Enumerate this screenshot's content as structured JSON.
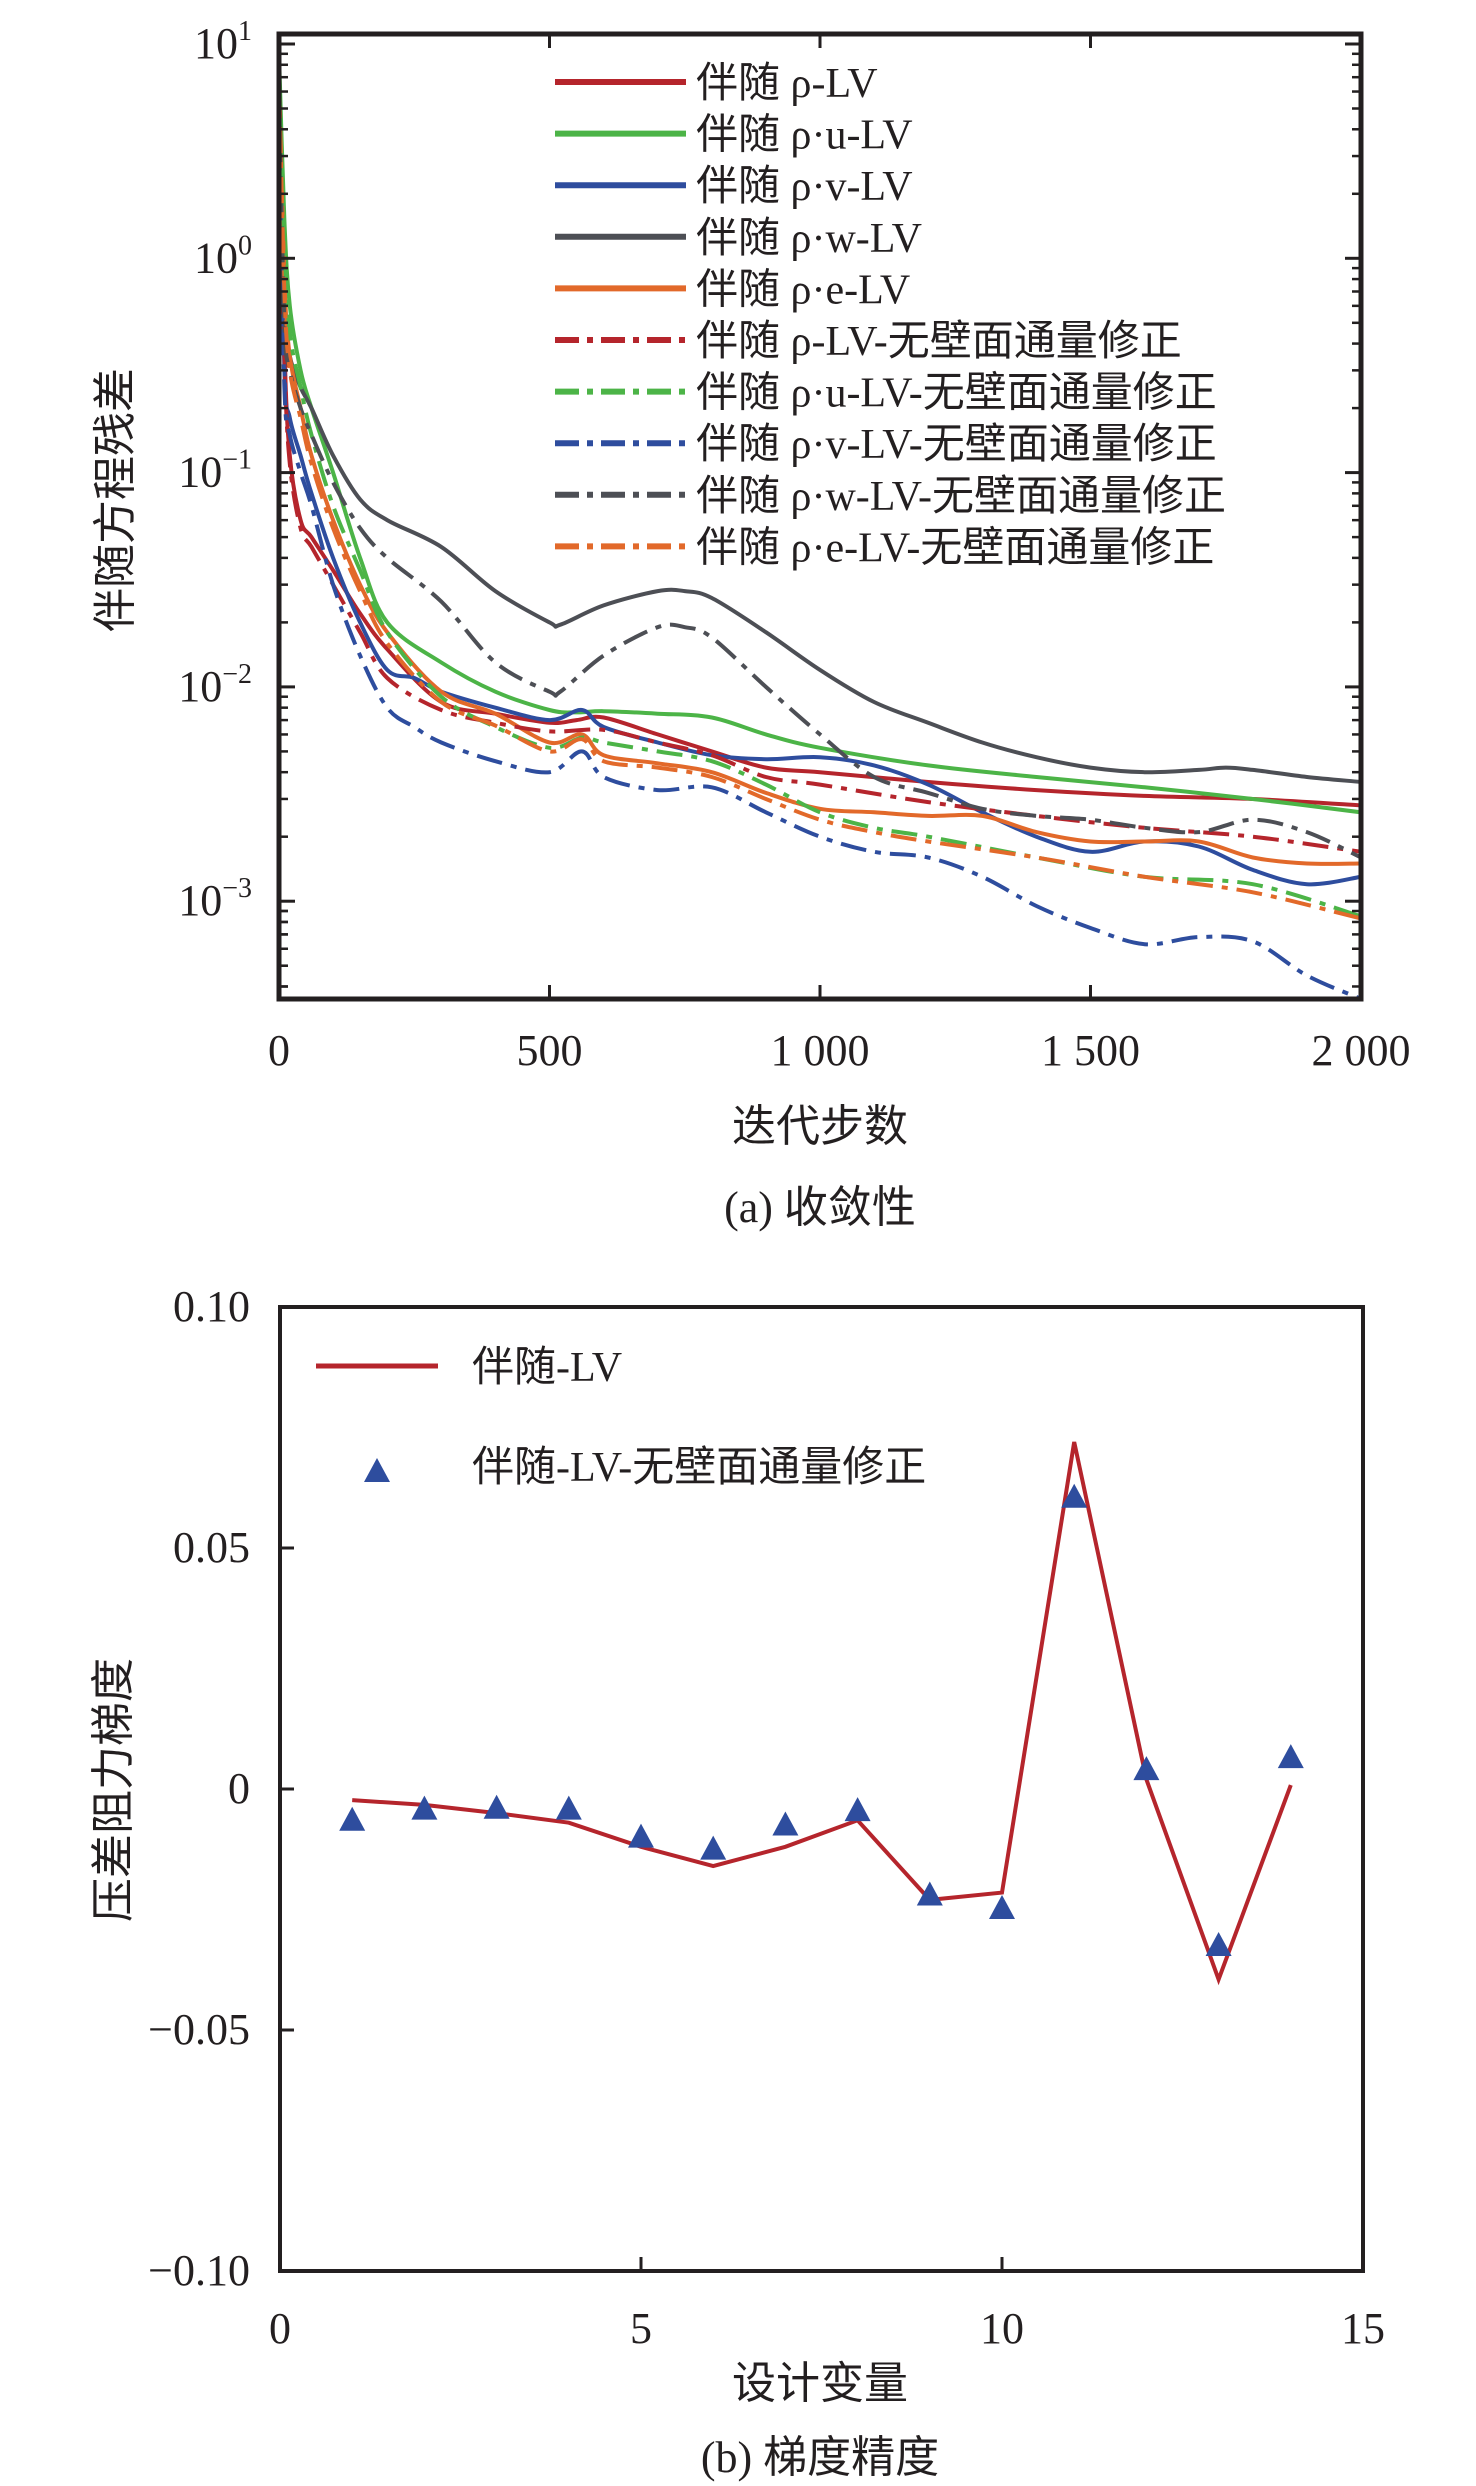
{
  "chart_data": [
    {
      "id": "a",
      "type": "line",
      "caption": "(a) 收敛性",
      "xlabel": "迭代步数",
      "ylabel": "伴随方程残差",
      "yscale": "log",
      "xlim": [
        0,
        2000
      ],
      "ylim": [
        0.00035,
        11.2
      ],
      "xticks": [
        0,
        500,
        1000,
        1500,
        2000
      ],
      "xtick_labels": [
        "0",
        "500",
        "1 000",
        "1 500",
        "2 000"
      ],
      "yticks": [
        10,
        1,
        0.1,
        0.01,
        0.001
      ],
      "ytick_labels": [
        {
          "base": "10",
          "exp": "1"
        },
        {
          "base": "10",
          "exp": "0"
        },
        {
          "base": "10",
          "exp": "−1"
        },
        {
          "base": "10",
          "exp": "−2"
        },
        {
          "base": "10",
          "exp": "−3"
        }
      ],
      "grid": false,
      "legend_position": "top-right",
      "series": [
        {
          "name": "伴随 ρ-LV",
          "color": "#b5252c",
          "style": "solid",
          "x": [
            0,
            10,
            20,
            40,
            60,
            100,
            150,
            200,
            300,
            400,
            500,
            550,
            600,
            700,
            800,
            900,
            1000,
            1200,
            1400,
            1600,
            1800,
            2000
          ],
          "y": [
            8,
            0.4,
            0.12,
            0.06,
            0.05,
            0.035,
            0.022,
            0.015,
            0.0085,
            0.0075,
            0.0068,
            0.007,
            0.0072,
            0.006,
            0.005,
            0.0042,
            0.004,
            0.0036,
            0.0033,
            0.0031,
            0.003,
            0.0028
          ]
        },
        {
          "name": "伴随 ρ·u-LV",
          "color": "#4cb447",
          "style": "solid",
          "x": [
            0,
            10,
            20,
            40,
            60,
            100,
            150,
            200,
            300,
            400,
            500,
            550,
            600,
            700,
            800,
            900,
            1000,
            1200,
            1400,
            1600,
            1800,
            2000
          ],
          "y": [
            9,
            1.5,
            0.6,
            0.3,
            0.2,
            0.1,
            0.04,
            0.02,
            0.013,
            0.0095,
            0.0078,
            0.0076,
            0.0077,
            0.0075,
            0.0072,
            0.006,
            0.0052,
            0.0043,
            0.0038,
            0.0034,
            0.003,
            0.0026
          ]
        },
        {
          "name": "伴随 ρ·v-LV",
          "color": "#2e4d9e",
          "style": "solid",
          "x": [
            0,
            10,
            20,
            40,
            60,
            100,
            150,
            200,
            250,
            300,
            400,
            500,
            560,
            600,
            700,
            800,
            900,
            1000,
            1100,
            1200,
            1300,
            1400,
            1500,
            1600,
            1700,
            1800,
            1900,
            2000
          ],
          "y": [
            5,
            0.3,
            0.18,
            0.12,
            0.08,
            0.04,
            0.02,
            0.012,
            0.011,
            0.0095,
            0.008,
            0.007,
            0.0078,
            0.0065,
            0.0055,
            0.0048,
            0.0046,
            0.0047,
            0.0043,
            0.0035,
            0.0026,
            0.002,
            0.0017,
            0.0019,
            0.0018,
            0.0014,
            0.0012,
            0.0013
          ]
        },
        {
          "name": "伴随 ρ·w-LV",
          "color": "#4d4f55",
          "style": "solid",
          "x": [
            0,
            10,
            20,
            40,
            60,
            100,
            150,
            200,
            300,
            400,
            500,
            520,
            600,
            700,
            750,
            800,
            900,
            1000,
            1100,
            1200,
            1300,
            1400,
            1500,
            1600,
            1700,
            1750,
            1800,
            1900,
            2000
          ],
          "y": [
            6,
            0.6,
            0.35,
            0.25,
            0.2,
            0.12,
            0.075,
            0.06,
            0.045,
            0.028,
            0.02,
            0.0195,
            0.024,
            0.028,
            0.028,
            0.026,
            0.018,
            0.012,
            0.0085,
            0.0068,
            0.0055,
            0.0047,
            0.0042,
            0.004,
            0.0041,
            0.0042,
            0.0041,
            0.0038,
            0.0036
          ]
        },
        {
          "name": "伴随 ρ·e-LV",
          "color": "#e2692a",
          "style": "solid",
          "x": [
            0,
            10,
            20,
            40,
            60,
            100,
            150,
            200,
            300,
            400,
            500,
            560,
            600,
            700,
            800,
            900,
            1000,
            1100,
            1200,
            1300,
            1400,
            1500,
            1600,
            1700,
            1800,
            1900,
            2000
          ],
          "y": [
            7,
            0.8,
            0.35,
            0.2,
            0.12,
            0.06,
            0.03,
            0.018,
            0.0095,
            0.0075,
            0.0055,
            0.006,
            0.0048,
            0.0044,
            0.004,
            0.0032,
            0.0027,
            0.0026,
            0.0025,
            0.0025,
            0.0021,
            0.0019,
            0.0019,
            0.0019,
            0.0016,
            0.0015,
            0.0015
          ]
        },
        {
          "name": "伴随 ρ-LV-无壁面通量修正",
          "color": "#b5252c",
          "style": "dashdot",
          "x": [
            0,
            10,
            20,
            40,
            60,
            100,
            150,
            200,
            300,
            400,
            500,
            600,
            700,
            800,
            900,
            1000,
            1200,
            1400,
            1600,
            1800,
            2000
          ],
          "y": [
            6,
            0.35,
            0.11,
            0.055,
            0.045,
            0.03,
            0.018,
            0.011,
            0.0078,
            0.0068,
            0.0062,
            0.0063,
            0.0055,
            0.0048,
            0.0038,
            0.0035,
            0.0029,
            0.0025,
            0.0022,
            0.002,
            0.0017
          ]
        },
        {
          "name": "伴随 ρ·u-LV-无壁面通量修正",
          "color": "#4cb447",
          "style": "dashdot",
          "x": [
            0,
            10,
            20,
            40,
            60,
            100,
            150,
            200,
            300,
            400,
            500,
            560,
            600,
            700,
            800,
            900,
            1000,
            1100,
            1200,
            1400,
            1600,
            1800,
            2000
          ],
          "y": [
            8,
            1.2,
            0.45,
            0.25,
            0.15,
            0.07,
            0.035,
            0.018,
            0.009,
            0.0065,
            0.0052,
            0.0058,
            0.0055,
            0.005,
            0.0045,
            0.0035,
            0.0026,
            0.0022,
            0.002,
            0.0016,
            0.0013,
            0.0012,
            0.00085
          ]
        },
        {
          "name": "伴随 ρ·v-LV-无壁面通量修正",
          "color": "#2e4d9e",
          "style": "dashdot",
          "x": [
            0,
            10,
            20,
            40,
            60,
            100,
            150,
            200,
            250,
            300,
            400,
            500,
            560,
            600,
            700,
            800,
            900,
            1000,
            1100,
            1200,
            1300,
            1400,
            1500,
            1600,
            1700,
            1800,
            1900,
            2000
          ],
          "y": [
            4,
            0.25,
            0.15,
            0.1,
            0.07,
            0.03,
            0.014,
            0.008,
            0.0065,
            0.0055,
            0.0045,
            0.004,
            0.005,
            0.0038,
            0.0033,
            0.0034,
            0.0026,
            0.002,
            0.0017,
            0.0016,
            0.0013,
            0.00095,
            0.00075,
            0.00063,
            0.00068,
            0.00065,
            0.00045,
            0.00035
          ]
        },
        {
          "name": "伴随 ρ·w-LV-无壁面通量修正",
          "color": "#4d4f55",
          "style": "dashdot",
          "x": [
            0,
            10,
            20,
            40,
            60,
            100,
            150,
            200,
            300,
            400,
            500,
            520,
            600,
            700,
            750,
            800,
            900,
            1000,
            1100,
            1200,
            1300,
            1400,
            1500,
            1600,
            1700,
            1800,
            1900,
            2000
          ],
          "y": [
            6,
            0.5,
            0.3,
            0.2,
            0.15,
            0.09,
            0.055,
            0.04,
            0.025,
            0.013,
            0.0095,
            0.0095,
            0.014,
            0.019,
            0.019,
            0.017,
            0.01,
            0.006,
            0.0038,
            0.0032,
            0.0027,
            0.0025,
            0.0024,
            0.0022,
            0.0021,
            0.0024,
            0.0021,
            0.0016
          ]
        },
        {
          "name": "伴随 ρ·e-LV-无壁面通量修正",
          "color": "#e2692a",
          "style": "dashdot",
          "x": [
            0,
            10,
            20,
            40,
            60,
            100,
            150,
            200,
            300,
            400,
            500,
            560,
            600,
            700,
            800,
            900,
            1000,
            1100,
            1200,
            1400,
            1600,
            1800,
            2000
          ],
          "y": [
            7,
            0.7,
            0.3,
            0.18,
            0.11,
            0.055,
            0.028,
            0.016,
            0.0085,
            0.0066,
            0.005,
            0.0057,
            0.0045,
            0.0042,
            0.0038,
            0.003,
            0.0024,
            0.0021,
            0.0019,
            0.0016,
            0.0013,
            0.0011,
            0.00083
          ]
        }
      ]
    },
    {
      "id": "b",
      "type": "line",
      "caption": "(b) 梯度精度",
      "xlabel": "设计变量",
      "ylabel": "压差阻力梯度",
      "xlim": [
        0,
        15
      ],
      "ylim": [
        -0.1,
        0.1
      ],
      "xticks": [
        0,
        5,
        10,
        15
      ],
      "xtick_labels": [
        "0",
        "5",
        "10",
        "15"
      ],
      "yticks": [
        0.1,
        0.05,
        0,
        -0.05,
        -0.1
      ],
      "ytick_labels": [
        "0.10",
        "0.05",
        "0",
        "−0.05",
        "−0.10"
      ],
      "grid": false,
      "legend_position": "top-left",
      "series": [
        {
          "name": "伴随-LV",
          "color": "#b5252c",
          "style": "line",
          "x": [
            1,
            2,
            3,
            4,
            5,
            6,
            7,
            8,
            9,
            10,
            11,
            12,
            13,
            14
          ],
          "y": [
            -0.0023,
            -0.0033,
            -0.005,
            -0.007,
            -0.012,
            -0.016,
            -0.012,
            -0.0065,
            -0.023,
            -0.0215,
            0.072,
            0.002,
            -0.0395,
            0.0008
          ]
        },
        {
          "name": "伴随-LV-无壁面通量修正",
          "color": "#2e4d9e",
          "style": "triangle-marker",
          "x": [
            1,
            2,
            3,
            4,
            5,
            6,
            7,
            8,
            9,
            10,
            11,
            12,
            13,
            14
          ],
          "y": [
            -0.007,
            -0.0047,
            -0.0045,
            -0.0047,
            -0.0105,
            -0.013,
            -0.008,
            -0.005,
            -0.0225,
            -0.0253,
            0.06,
            0.0035,
            -0.033,
            0.006
          ]
        }
      ]
    }
  ]
}
